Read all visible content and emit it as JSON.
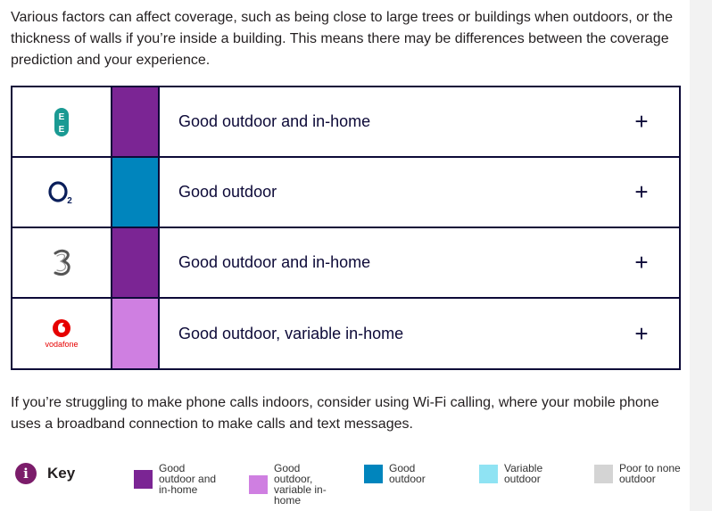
{
  "intro_text": "Various factors can affect coverage, such as being close to large trees or buildings when outdoors, or the thickness of walls if you’re inside a building. This means there may be differences between the coverage prediction and your experience.",
  "operators": [
    {
      "name": "EE",
      "logo_icon": "ee-logo-icon",
      "coverage": "Good outdoor and in-home",
      "color": "#7b2594",
      "expand": "+"
    },
    {
      "name": "O2",
      "logo_icon": "o2-logo-icon",
      "coverage": "Good outdoor",
      "color": "#0085bd",
      "expand": "+"
    },
    {
      "name": "Three",
      "logo_icon": "three-logo-icon",
      "coverage": "Good outdoor and in-home",
      "color": "#7b2594",
      "expand": "+"
    },
    {
      "name": "Vodafone",
      "logo_icon": "vodafone-logo-icon",
      "coverage": "Good outdoor, variable in-home",
      "color": "#cf7fe1",
      "expand": "+"
    }
  ],
  "vodafone_wordmark": "vodafone",
  "outro_text": "If you’re struggling to make phone calls indoors, consider using Wi-Fi calling, where your mobile phone uses a broadband connection to make calls and text messages.",
  "key": {
    "icon_glyph": "i",
    "label": "Key",
    "items": [
      {
        "label": "Good outdoor and in-home",
        "color": "#7b2594"
      },
      {
        "label": "Good outdoor, variable in-home",
        "color": "#cf7fe1"
      },
      {
        "label": "Good outdoor",
        "color": "#0085bd"
      },
      {
        "label": "Variable outdoor",
        "color": "#8fe3f3"
      },
      {
        "label": "Poor to none outdoor",
        "color": "#d4d4d4"
      }
    ]
  }
}
